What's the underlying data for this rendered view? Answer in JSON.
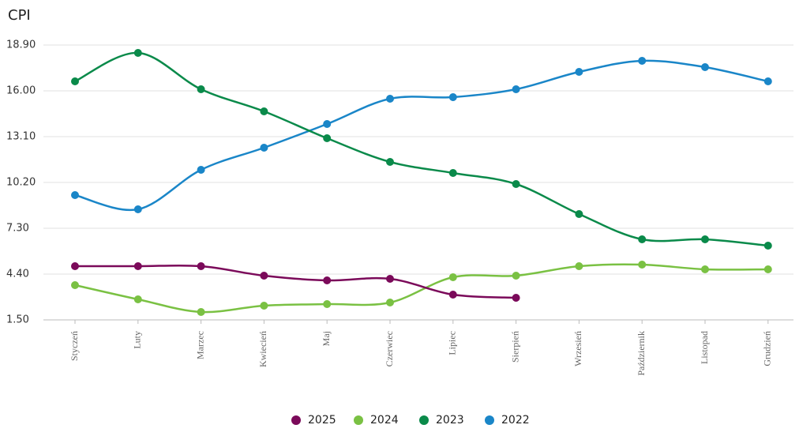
{
  "chart_data": {
    "type": "line",
    "title": "CPI",
    "categories": [
      "Styczeń",
      "Luty",
      "Marzec",
      "Kwiecień",
      "Maj",
      "Czerwiec",
      "Lipiec",
      "Sierpień",
      "Wrzesień",
      "Październik",
      "Listopad",
      "Grudzień"
    ],
    "series": [
      {
        "name": "2025",
        "color": "#7b0a5a",
        "values": [
          4.9,
          4.9,
          4.9,
          4.3,
          4.0,
          4.1,
          3.1,
          2.9,
          null,
          null,
          null,
          null
        ]
      },
      {
        "name": "2024",
        "color": "#7ac143",
        "values": [
          3.7,
          2.8,
          2.0,
          2.4,
          2.5,
          2.6,
          4.2,
          4.3,
          4.9,
          5.0,
          4.7,
          4.7
        ]
      },
      {
        "name": "2023",
        "color": "#0a8a4a",
        "values": [
          16.6,
          18.4,
          16.1,
          14.7,
          13.0,
          11.5,
          10.8,
          10.1,
          8.2,
          6.6,
          6.6,
          6.2
        ]
      },
      {
        "name": "2022",
        "color": "#1a86c8",
        "values": [
          9.4,
          8.5,
          11.0,
          12.4,
          13.9,
          15.5,
          15.6,
          16.1,
          17.2,
          17.9,
          17.5,
          16.6
        ]
      }
    ],
    "ylim": [
      1.5,
      18.9
    ],
    "yticks": [
      {
        "value": 1.5,
        "label": "1.50"
      },
      {
        "value": 4.4,
        "label": "4.40"
      },
      {
        "value": 7.3,
        "label": "7.30"
      },
      {
        "value": 10.2,
        "label": "10.20"
      },
      {
        "value": 13.1,
        "label": "13.10"
      },
      {
        "value": 16,
        "label": "16.00"
      },
      {
        "value": 18.9,
        "label": "18.90"
      }
    ],
    "grid": true,
    "legend": "bottom"
  }
}
